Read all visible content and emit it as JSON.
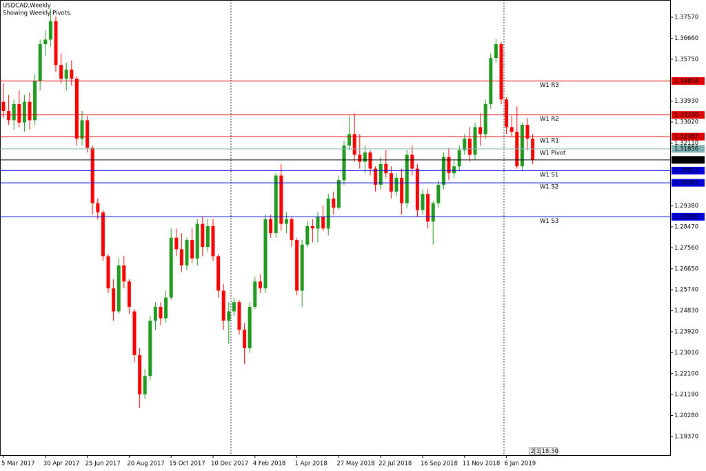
{
  "chart_data": {
    "type": "candlestick",
    "title": "USDCAD,Weekly",
    "subtitle": "Showing Weekly Pivots.",
    "categories": [
      "5 Mar 2017",
      null,
      null,
      null,
      null,
      null,
      null,
      null,
      "30 Apr 2017",
      null,
      null,
      null,
      null,
      null,
      null,
      null,
      "25 Jun 2017",
      null,
      null,
      null,
      null,
      null,
      null,
      null,
      "20 Aug 2017",
      null,
      null,
      null,
      null,
      null,
      null,
      null,
      "15 Oct 2017",
      null,
      null,
      null,
      null,
      null,
      null,
      null,
      "10 Dec 2017",
      null,
      null,
      null,
      null,
      null,
      null,
      null,
      "4 Feb 2018",
      null,
      null,
      null,
      null,
      null,
      null,
      null,
      "1 Apr 2018",
      null,
      null,
      null,
      null,
      null,
      null,
      null,
      "27 May 2018",
      null,
      null,
      null,
      null,
      null,
      null,
      null,
      "22 Jul 2018",
      null,
      null,
      null,
      null,
      null,
      null,
      null,
      "16 Sep 2018",
      null,
      null,
      null,
      null,
      null,
      null,
      null,
      "11 Nov 2018",
      null,
      null,
      null,
      null,
      null,
      null,
      null,
      "6 Jan 2019",
      null,
      null,
      null,
      null,
      null
    ],
    "open": [
      1.339,
      1.335,
      1.331,
      1.338,
      1.33,
      1.339,
      1.331,
      1.348,
      1.364,
      1.366,
      1.374,
      1.355,
      1.349,
      1.353,
      1.349,
      1.323,
      1.331,
      1.319,
      1.295,
      1.291,
      1.272,
      1.258,
      1.248,
      1.268,
      1.261,
      1.248,
      1.229,
      1.212,
      1.22,
      1.244,
      1.25,
      1.245,
      1.254,
      1.28,
      1.275,
      1.268,
      1.279,
      1.271,
      1.286,
      1.276,
      1.285,
      1.272,
      1.257,
      1.244,
      1.248,
      1.252,
      1.24,
      1.232,
      1.25,
      1.261,
      1.258,
      1.288,
      1.282,
      1.307,
      1.286,
      1.288,
      1.279,
      1.257,
      1.277,
      1.285,
      1.284,
      1.289,
      1.284,
      1.297,
      1.293,
      1.305,
      1.32,
      1.325,
      1.316,
      1.313,
      1.317,
      1.31,
      1.303,
      1.312,
      1.308,
      1.3,
      1.306,
      1.295,
      1.316,
      1.31,
      1.292,
      1.299,
      1.287,
      1.295,
      1.303,
      1.315,
      1.308,
      1.311,
      1.318,
      1.323,
      1.316,
      1.328,
      1.325,
      1.338,
      1.358,
      1.364,
      1.34,
      1.328,
      1.326,
      1.311,
      1.329,
      1.323
    ],
    "high": [
      1.347,
      1.342,
      1.34,
      1.344,
      1.342,
      1.343,
      1.351,
      1.366,
      1.37,
      1.3795,
      1.376,
      1.36,
      1.356,
      1.357,
      1.35,
      1.335,
      1.333,
      1.32,
      1.297,
      1.292,
      1.273,
      1.262,
      1.271,
      1.272,
      1.262,
      1.249,
      1.232,
      1.223,
      1.246,
      1.252,
      1.252,
      1.257,
      1.284,
      1.284,
      1.282,
      1.28,
      1.284,
      1.288,
      1.289,
      1.288,
      1.288,
      1.273,
      1.26,
      1.252,
      1.254,
      1.253,
      1.243,
      1.252,
      1.263,
      1.264,
      1.29,
      1.29,
      1.308,
      1.312,
      1.291,
      1.289,
      1.28,
      1.279,
      1.287,
      1.288,
      1.291,
      1.294,
      1.299,
      1.3,
      1.307,
      1.322,
      1.333,
      1.334,
      1.325,
      1.32,
      1.318,
      1.311,
      1.315,
      1.318,
      1.311,
      1.308,
      1.31,
      1.318,
      1.32,
      1.312,
      1.301,
      1.301,
      1.296,
      1.305,
      1.317,
      1.319,
      1.314,
      1.32,
      1.325,
      1.328,
      1.33,
      1.334,
      1.34,
      1.36,
      1.3665,
      1.365,
      1.341,
      1.333,
      1.337,
      1.33,
      1.332,
      1.325
    ],
    "low": [
      1.332,
      1.329,
      1.327,
      1.328,
      1.326,
      1.327,
      1.329,
      1.344,
      1.359,
      1.363,
      1.352,
      1.347,
      1.344,
      1.346,
      1.32,
      1.32,
      1.317,
      1.29,
      1.288,
      1.27,
      1.256,
      1.244,
      1.247,
      1.258,
      1.247,
      1.226,
      1.206,
      1.21,
      1.218,
      1.24,
      1.242,
      1.243,
      1.253,
      1.272,
      1.265,
      1.266,
      1.269,
      1.268,
      1.272,
      1.274,
      1.27,
      1.254,
      1.24,
      1.234,
      1.246,
      1.238,
      1.225,
      1.23,
      1.249,
      1.256,
      1.256,
      1.28,
      1.28,
      1.283,
      1.282,
      1.276,
      1.255,
      1.25,
      1.276,
      1.278,
      1.278,
      1.283,
      1.281,
      1.29,
      1.292,
      1.303,
      1.318,
      1.313,
      1.31,
      1.308,
      1.307,
      1.3,
      1.301,
      1.306,
      1.297,
      1.298,
      1.29,
      1.293,
      1.307,
      1.289,
      1.29,
      1.284,
      1.277,
      1.293,
      1.301,
      1.305,
      1.306,
      1.309,
      1.316,
      1.313,
      1.314,
      1.32,
      1.323,
      1.336,
      1.356,
      1.338,
      1.325,
      1.324,
      1.31,
      1.309,
      1.318,
      1.312
    ],
    "close": [
      1.335,
      1.331,
      1.338,
      1.33,
      1.339,
      1.331,
      1.348,
      1.364,
      1.366,
      1.374,
      1.355,
      1.349,
      1.353,
      1.349,
      1.323,
      1.331,
      1.319,
      1.295,
      1.291,
      1.272,
      1.258,
      1.248,
      1.268,
      1.261,
      1.25,
      1.229,
      1.212,
      1.22,
      1.244,
      1.25,
      1.245,
      1.254,
      1.28,
      1.275,
      1.268,
      1.279,
      1.271,
      1.286,
      1.276,
      1.285,
      1.272,
      1.257,
      1.244,
      1.248,
      1.252,
      1.24,
      1.232,
      1.25,
      1.261,
      1.258,
      1.288,
      1.282,
      1.307,
      1.286,
      1.288,
      1.279,
      1.257,
      1.277,
      1.285,
      1.284,
      1.289,
      1.284,
      1.297,
      1.293,
      1.305,
      1.32,
      1.325,
      1.316,
      1.313,
      1.317,
      1.31,
      1.303,
      1.312,
      1.308,
      1.3,
      1.306,
      1.295,
      1.316,
      1.31,
      1.292,
      1.299,
      1.287,
      1.295,
      1.303,
      1.315,
      1.308,
      1.311,
      1.318,
      1.323,
      1.316,
      1.328,
      1.325,
      1.338,
      1.358,
      1.364,
      1.34,
      1.328,
      1.326,
      1.311,
      1.329,
      1.323,
      1.3138
    ],
    "up_color": "#1f9a1f",
    "down_color": "#ff0000",
    "pivots": [
      {
        "name": "W1 R3",
        "value": 1.34804,
        "color": "#e00000"
      },
      {
        "name": "W1 R2",
        "value": 1.3333,
        "value_label": "1.33330",
        "color": "#e00000"
      },
      {
        "name": "W1 R1",
        "value": 1.32387,
        "color": "#e00000"
      },
      {
        "name": "W1 Pivot",
        "value": 1.31856,
        "color": "#7fb3b3"
      },
      {
        "name": "W1 S1",
        "value": 1.30913,
        "color": "#0000dd"
      },
      {
        "name": "W1 S2",
        "value": 1.30382,
        "color": "#0000dd"
      },
      {
        "name": "W1 S3",
        "value": 1.28908,
        "color": "#0000dd"
      }
    ],
    "current_price": 1.31379,
    "ylim": [
      1.1856,
      1.3832
    ],
    "yticks": [
      {
        "value": 1.3757,
        "label": "1.37570"
      },
      {
        "value": 1.3666,
        "label": "1.36660"
      },
      {
        "value": 1.3575,
        "label": "1.35750"
      },
      {
        "value": 1.3393,
        "label": "1.33930"
      },
      {
        "value": 1.3302,
        "label": "1.33020"
      },
      {
        "value": 1.3211,
        "label": "1.32110"
      },
      {
        "value": 1.2938,
        "label": "1.29380"
      },
      {
        "value": 1.2847,
        "label": "1.28470"
      },
      {
        "value": 1.2756,
        "label": "1.27560"
      },
      {
        "value": 1.2665,
        "label": "1.26650"
      },
      {
        "value": 1.2574,
        "label": "1.25740"
      },
      {
        "value": 1.2483,
        "label": "1.24830"
      },
      {
        "value": 1.2392,
        "label": "1.23920"
      },
      {
        "value": 1.2301,
        "label": "1.23010"
      },
      {
        "value": 1.221,
        "label": "1.22100"
      },
      {
        "value": 1.2119,
        "label": "1.21190"
      },
      {
        "value": 1.2028,
        "label": "1.20280"
      },
      {
        "value": 1.1937,
        "label": "1.19370"
      }
    ],
    "status": [
      "2",
      "1",
      "18:30"
    ]
  }
}
